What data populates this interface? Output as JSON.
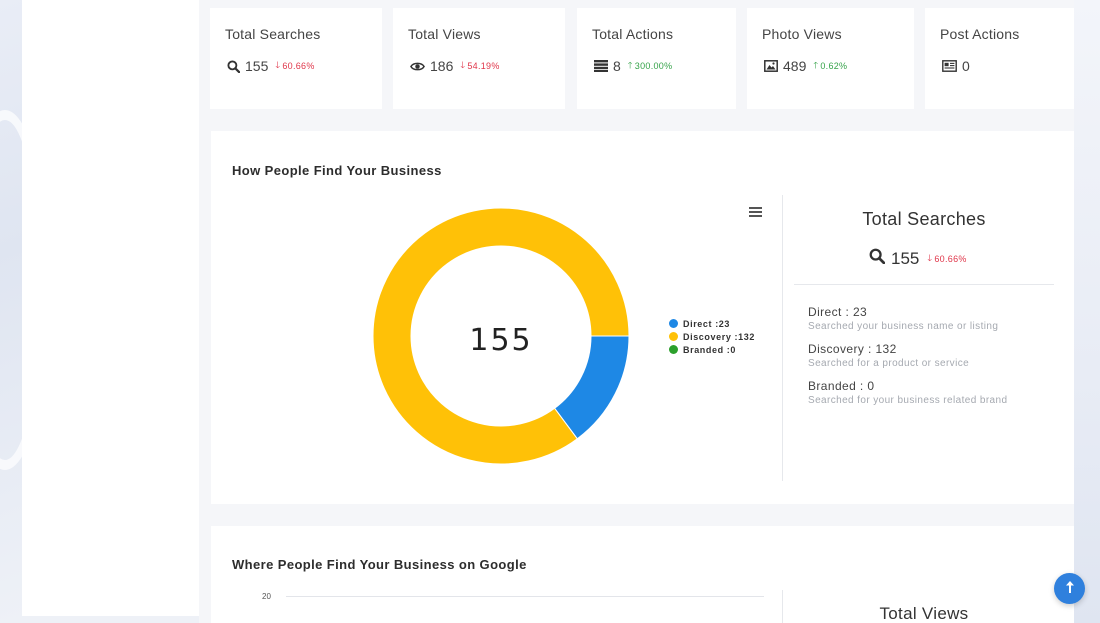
{
  "stats": [
    {
      "title": "Total Searches",
      "value": "155",
      "change": "60.66%",
      "direction": "down",
      "icon": "search-icon"
    },
    {
      "title": "Total Views",
      "value": "186",
      "change": "54.19%",
      "direction": "down",
      "icon": "eye-icon"
    },
    {
      "title": "Total Actions",
      "value": "8",
      "change": "300.00%",
      "direction": "up",
      "icon": "list-icon"
    },
    {
      "title": "Photo Views",
      "value": "489",
      "change": "0.62%",
      "direction": "up",
      "icon": "image-icon"
    },
    {
      "title": "Post Actions",
      "value": "0",
      "icon": "newspaper-icon"
    }
  ],
  "find_panel": {
    "title": "How People Find Your Business",
    "center_value": "155",
    "side_title": "Total Searches",
    "side_value": "155",
    "side_change": "60.66%",
    "items": [
      {
        "label": "Direct : 23",
        "desc": "Searched your business name or listing"
      },
      {
        "label": "Discovery : 132",
        "desc": "Searched for a product or service"
      },
      {
        "label": "Branded : 0",
        "desc": "Searched for your business related brand"
      }
    ]
  },
  "chart_data": {
    "type": "pie",
    "donut": true,
    "categories": [
      "Direct",
      "Discovery",
      "Branded"
    ],
    "values": [
      23,
      132,
      0
    ],
    "legend": [
      "Direct :23",
      "Discovery :132",
      "Branded :0"
    ],
    "colors": [
      "#1e88e5",
      "#ffc107",
      "#2ca02c"
    ],
    "legend_position": "right"
  },
  "google_panel": {
    "title": "Where People Find Your Business on Google",
    "axis_tick": "20",
    "side_title": "Total Views"
  },
  "colors": {
    "down": "#e0364a",
    "up": "#36a34a",
    "accent": "#2f80dd"
  }
}
